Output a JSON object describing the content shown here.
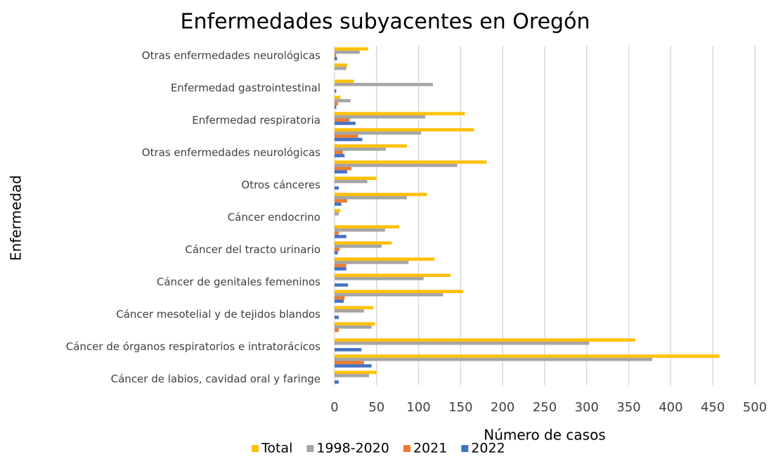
{
  "chart_data": {
    "type": "hbar",
    "title": "Enfermedades subyacentes en Oregón",
    "x_label": "Número de casos",
    "y_label": "Enfermedad",
    "categories": [
      "Otras enfermedades neurológicas",
      null,
      "Enfermedad gastrointestinal",
      null,
      "Enfermedad respiratoria",
      null,
      "Otras enfermedades neurológicas",
      null,
      "Otros cánceres",
      null,
      "Cáncer endocrino",
      null,
      "Cáncer del tracto urinario",
      null,
      "Cáncer de genitales femeninos",
      null,
      "Cáncer mesotelial y de tejidos blandos",
      null,
      "Cáncer de órganos respiratorios e intratorácicos",
      null,
      "Cáncer de labios, cavidad oral y faringe"
    ],
    "series": [
      {
        "name": "Total",
        "color": "#FFC000",
        "values": [
          40,
          15,
          23,
          7,
          155,
          166,
          86,
          181,
          50,
          110,
          7,
          77,
          68,
          119,
          138,
          153,
          46,
          48,
          358,
          458,
          50
        ]
      },
      {
        "name": "1998-2020",
        "color": "#A5A5A5",
        "values": [
          30,
          14,
          117,
          19,
          108,
          103,
          61,
          146,
          39,
          86,
          5,
          60,
          56,
          88,
          106,
          129,
          35,
          44,
          303,
          378,
          41
        ]
      },
      {
        "name": "2021",
        "color": "#ED7D31",
        "values": [
          2,
          0,
          0,
          4,
          18,
          28,
          10,
          20,
          0,
          15,
          0,
          5,
          6,
          14,
          0,
          12,
          0,
          5,
          0,
          35,
          0
        ]
      },
      {
        "name": "2022",
        "color": "#4472C4",
        "values": [
          3,
          0,
          2,
          2,
          25,
          33,
          12,
          15,
          5,
          8,
          0,
          14,
          4,
          14,
          16,
          11,
          5,
          0,
          32,
          44,
          5
        ]
      }
    ],
    "xlim": [
      0,
      500
    ],
    "xticks": [
      0,
      50,
      100,
      150,
      200,
      250,
      300,
      350,
      400,
      450,
      500
    ],
    "grid": true,
    "legend": "bottom"
  }
}
